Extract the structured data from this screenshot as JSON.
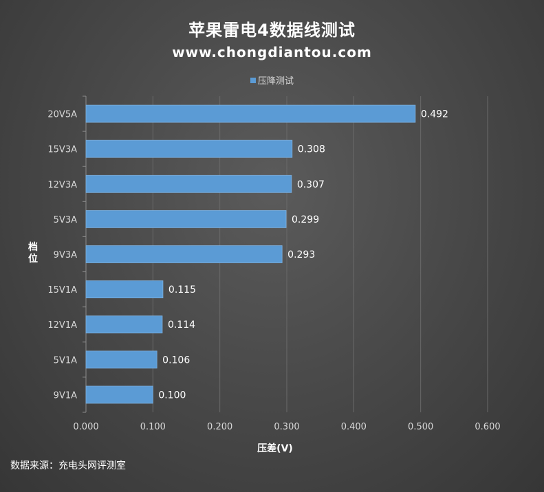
{
  "chart_data": {
    "type": "bar",
    "orientation": "horizontal",
    "title": "苹果雷电4数据线测试",
    "subtitle": "www.chongdiantou.com",
    "legend": {
      "position": "top",
      "entries": [
        "压降测试"
      ]
    },
    "categories": [
      "20V5A",
      "15V3A",
      "12V3A",
      "5V3A",
      "9V3A",
      "15V1A",
      "12V1A",
      "5V1A",
      "9V1A"
    ],
    "series": [
      {
        "name": "压降测试",
        "values": [
          0.492,
          0.308,
          0.307,
          0.299,
          0.293,
          0.115,
          0.114,
          0.106,
          0.1
        ],
        "labels": [
          "0.492",
          "0.308",
          "0.307",
          "0.299",
          "0.293",
          "0.115",
          "0.114",
          "0.106",
          "0.100"
        ],
        "color": "#5b9bd5"
      }
    ],
    "xlabel": "压差(V)",
    "ylabel": "档位",
    "xlim": [
      0,
      0.6
    ],
    "xticks": [
      0,
      0.1,
      0.2,
      0.3,
      0.4,
      0.5,
      0.6
    ],
    "xtick_labels": [
      "0.000",
      "0.100",
      "0.200",
      "0.300",
      "0.400",
      "0.500",
      "0.600"
    ],
    "grid": "vertical"
  },
  "source": "数据来源：充电头网评测室"
}
